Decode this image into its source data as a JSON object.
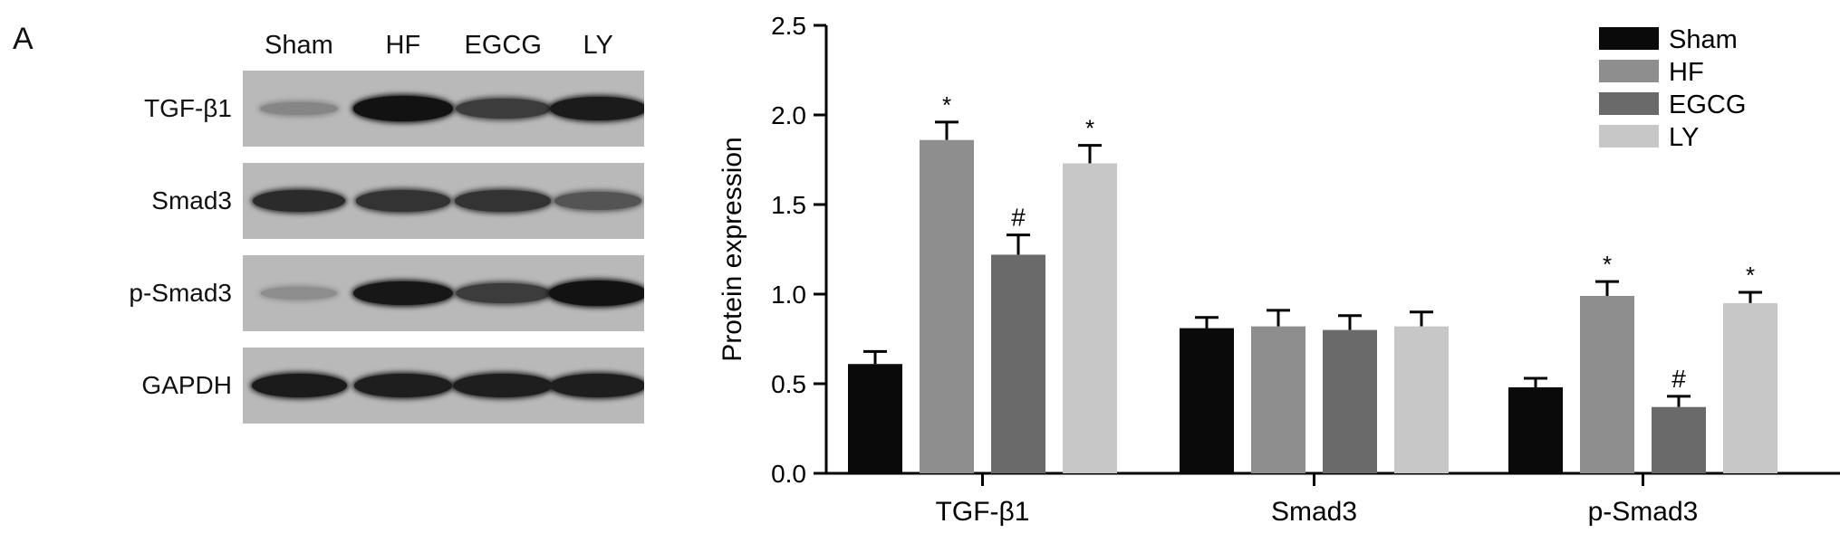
{
  "panel_label": "A",
  "blot": {
    "lanes": [
      "Sham",
      "HF",
      "EGCG",
      "LY"
    ],
    "rows": [
      {
        "label": "TGF-β1",
        "intensity": [
          0.25,
          0.95,
          0.7,
          0.9
        ]
      },
      {
        "label": "Smad3",
        "intensity": [
          0.8,
          0.75,
          0.75,
          0.55
        ]
      },
      {
        "label": "p-Smad3",
        "intensity": [
          0.2,
          0.92,
          0.7,
          0.95
        ]
      },
      {
        "label": "GAPDH",
        "intensity": [
          0.9,
          0.88,
          0.88,
          0.88
        ]
      }
    ]
  },
  "chart_data": {
    "type": "bar",
    "title": "",
    "xlabel": "",
    "ylabel": "Protein expression",
    "ylim": [
      0,
      2.5
    ],
    "yticks": [
      "0.0",
      "0.5",
      "1.0",
      "1.5",
      "2.0",
      "2.5"
    ],
    "categories": [
      "TGF-β1",
      "Smad3",
      "p-Smad3"
    ],
    "legend_position": "top-right",
    "grid": false,
    "series": [
      {
        "name": "Sham",
        "color": "#0a0a0a",
        "values": [
          0.61,
          0.81,
          0.48
        ],
        "errors": [
          0.07,
          0.06,
          0.05
        ],
        "marks": [
          "",
          "",
          ""
        ]
      },
      {
        "name": "HF",
        "color": "#8e8e8e",
        "values": [
          1.86,
          0.82,
          0.99
        ],
        "errors": [
          0.1,
          0.09,
          0.08
        ],
        "marks": [
          "*",
          "",
          "*"
        ]
      },
      {
        "name": "EGCG",
        "color": "#6a6a6a",
        "values": [
          1.22,
          0.8,
          0.37
        ],
        "errors": [
          0.11,
          0.08,
          0.06
        ],
        "marks": [
          "#",
          "",
          "#"
        ]
      },
      {
        "name": "LY",
        "color": "#c7c7c7",
        "values": [
          1.73,
          0.82,
          0.95
        ],
        "errors": [
          0.1,
          0.08,
          0.06
        ],
        "marks": [
          "*",
          "",
          "*"
        ]
      }
    ]
  }
}
